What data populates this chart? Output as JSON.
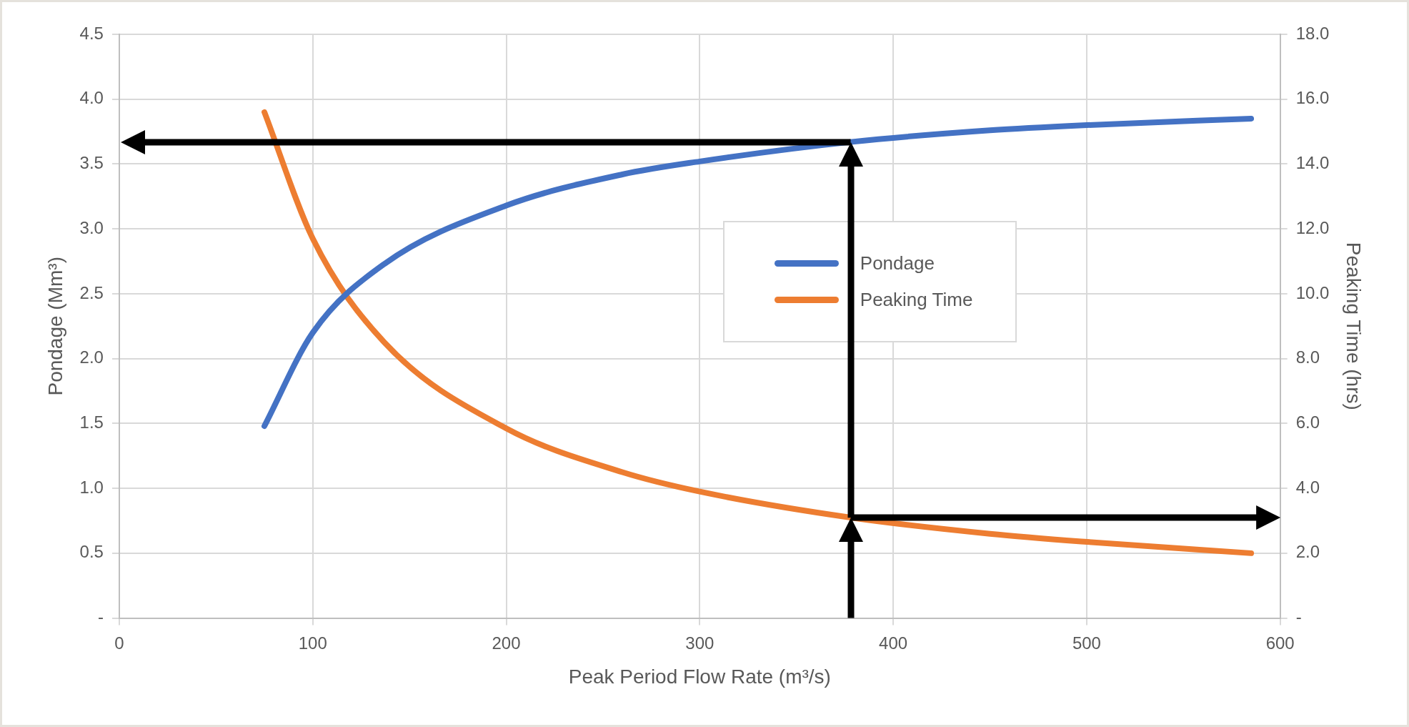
{
  "chart_data": {
    "type": "line",
    "xlabel": "Peak Period Flow Rate (m³/s)",
    "ylabel": "Pondage (Mm³)",
    "y2label": "Peaking Time (hrs)",
    "x": [
      75,
      100,
      137,
      200,
      260,
      300,
      378,
      450,
      500,
      585
    ],
    "series": [
      {
        "name": "Pondage",
        "color": "#4472c4",
        "values": [
          1.48,
          2.2,
          2.73,
          3.18,
          3.42,
          3.52,
          3.67,
          3.76,
          3.8,
          3.85
        ]
      },
      {
        "name": "Peaking Time",
        "color": "#ed7d31",
        "axis": "y2",
        "values": [
          15.6,
          11.7,
          8.5,
          5.85,
          4.5,
          3.9,
          3.1,
          2.6,
          2.35,
          2.0
        ]
      }
    ],
    "xlim": [
      0,
      600
    ],
    "xticks": [
      0,
      100,
      200,
      300,
      400,
      500,
      600
    ],
    "ylim": [
      0,
      4.5
    ],
    "yticks": [
      {
        "value": 0,
        "label": "-"
      },
      0.5,
      {
        "value": 1,
        "label": "1.0"
      },
      1.5,
      {
        "value": 2,
        "label": "2.0"
      },
      2.5,
      {
        "value": 3,
        "label": "3.0"
      },
      3.5,
      {
        "value": 4,
        "label": "4.0"
      },
      4.5
    ],
    "y2lim": [
      0,
      18
    ],
    "y2ticks": [
      {
        "value": 0,
        "label": "-"
      },
      {
        "value": 2,
        "label": "2.0"
      },
      {
        "value": 4,
        "label": "4.0"
      },
      {
        "value": 6,
        "label": "6.0"
      },
      {
        "value": 8,
        "label": "8.0"
      },
      {
        "value": 10,
        "label": "10.0"
      },
      {
        "value": 12,
        "label": "12.0"
      },
      {
        "value": 14,
        "label": "14.0"
      },
      {
        "value": 16,
        "label": "16.0"
      },
      {
        "value": 18,
        "label": "18.0"
      }
    ],
    "grid": true,
    "legend": "right",
    "marker": "none",
    "line_style": "solid"
  }
}
